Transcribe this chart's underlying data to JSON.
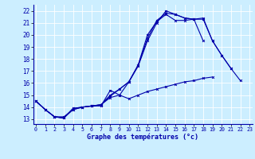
{
  "xlabel": "Graphe des températures (°c)",
  "bg_color": "#cceeff",
  "grid_color": "#ffffff",
  "line_color": "#0000aa",
  "x_ticks": [
    0,
    1,
    2,
    3,
    4,
    5,
    6,
    7,
    8,
    9,
    10,
    11,
    12,
    13,
    14,
    15,
    16,
    17,
    18,
    19,
    20,
    21,
    22,
    23
  ],
  "y_ticks": [
    13,
    14,
    15,
    16,
    17,
    18,
    19,
    20,
    21,
    22
  ],
  "xlim": [
    -0.3,
    23.3
  ],
  "ylim": [
    12.6,
    22.5
  ],
  "series": [
    {
      "x": [
        0,
        1,
        2,
        3,
        4,
        5,
        6,
        7,
        8,
        9,
        10,
        11,
        12,
        13,
        14,
        15,
        16,
        17,
        18
      ],
      "y": [
        14.5,
        13.8,
        13.2,
        13.1,
        13.9,
        14.0,
        14.1,
        14.1,
        15.4,
        15.0,
        16.1,
        17.5,
        20.0,
        21.1,
        21.7,
        21.2,
        21.2,
        21.3,
        19.5
      ]
    },
    {
      "x": [
        0,
        1,
        2,
        3,
        4,
        5,
        6,
        7,
        8,
        9,
        10,
        11,
        12,
        13,
        14,
        15,
        16,
        17,
        18,
        19,
        20,
        21
      ],
      "y": [
        14.5,
        13.8,
        13.2,
        13.1,
        13.9,
        14.0,
        14.1,
        14.2,
        15.0,
        15.5,
        16.1,
        17.4,
        19.5,
        21.0,
        22.0,
        21.7,
        21.4,
        21.3,
        21.3,
        19.5,
        18.3,
        17.2
      ]
    },
    {
      "x": [
        0,
        1,
        2,
        3,
        4,
        5,
        6,
        7,
        8,
        9,
        10,
        11,
        12,
        13,
        14,
        15,
        16,
        17,
        18,
        19,
        20,
        21,
        22
      ],
      "y": [
        14.5,
        13.8,
        13.2,
        13.1,
        13.8,
        14.0,
        14.1,
        14.2,
        14.9,
        15.5,
        16.1,
        17.5,
        19.7,
        21.2,
        21.8,
        21.7,
        21.4,
        21.3,
        21.4,
        19.5,
        18.3,
        17.2,
        16.2
      ]
    },
    {
      "x": [
        0,
        1,
        2,
        3,
        4,
        5,
        6,
        7,
        8,
        9,
        10,
        11,
        12,
        13,
        14,
        15,
        16,
        17,
        18,
        19
      ],
      "y": [
        14.5,
        13.8,
        13.2,
        13.2,
        13.8,
        14.0,
        14.1,
        14.2,
        14.8,
        15.0,
        14.7,
        15.0,
        15.3,
        15.5,
        15.7,
        15.9,
        16.1,
        16.2,
        16.4,
        16.5
      ]
    }
  ]
}
